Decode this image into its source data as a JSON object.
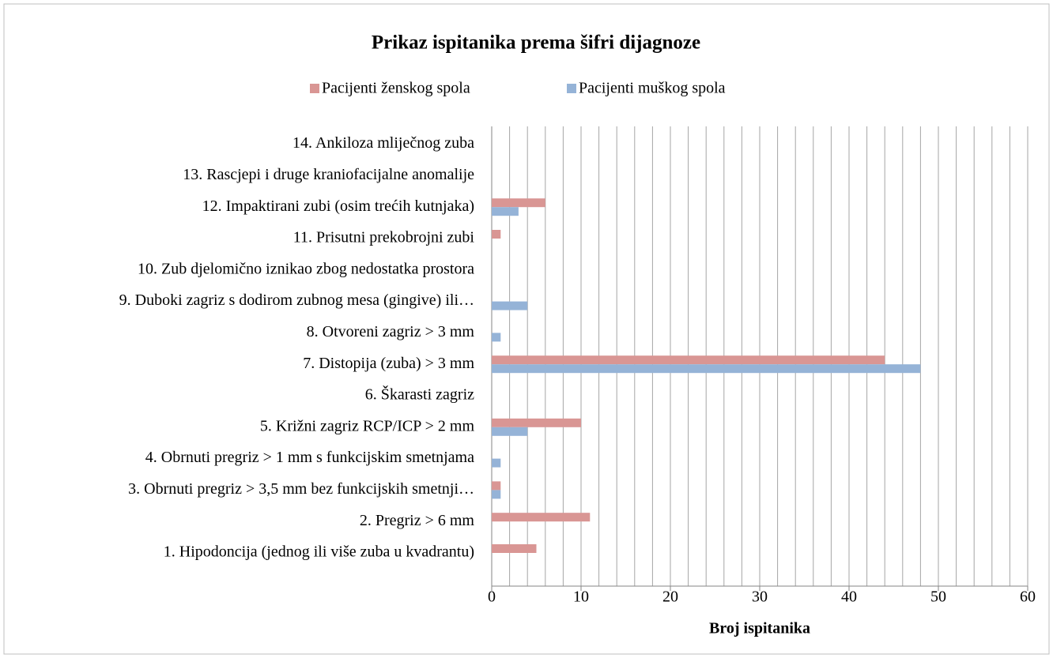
{
  "chart_data": {
    "type": "hbar",
    "title": "Prikaz ispitanika prema šifri dijagnoze",
    "xlabel": "Broj ispitanika",
    "categories": [
      "1. Hipodoncija (jednog ili više zuba u kvadrantu)",
      "2. Pregriz > 6 mm",
      "3. Obrnuti pregriz > 3,5 mm bez funkcijskih smetnji…",
      "4. Obrnuti pregriz > 1 mm s funkcijskim smetnjama",
      "5. Križni zagriz RCP/ICP > 2 mm",
      "6. Škarasti zagriz",
      "7. Distopija (zuba) > 3 mm",
      "8. Otvoreni zagriz > 3 mm",
      "9. Duboki zagriz s dodirom zubnog mesa (gingive) ili…",
      "10. Zub djelomično iznikao zbog nedostatka prostora",
      "11. Prisutni prekobrojni zubi",
      "12. Impaktirani zubi (osim trećih kutnjaka)",
      "13. Rascjepi i druge kraniofacijalne anomalije",
      "14. Ankiloza mliječnog zuba"
    ],
    "series": [
      {
        "name": "Pacijenti ženskog spola",
        "color": "#d99694",
        "values": [
          5,
          11,
          1,
          0,
          10,
          0,
          44,
          0,
          0,
          0,
          1,
          6,
          0,
          0
        ]
      },
      {
        "name": "Pacijenti muškog spola",
        "color": "#95b3d7",
        "values": [
          0,
          0,
          1,
          1,
          4,
          0,
          48,
          1,
          4,
          0,
          0,
          3,
          0,
          0
        ]
      }
    ],
    "xlim": [
      0,
      60
    ],
    "xticks": [
      0,
      10,
      20,
      30,
      40,
      50,
      60
    ],
    "xgrid": [
      0,
      2,
      4,
      6,
      8,
      10,
      12,
      14,
      16,
      18,
      20,
      22,
      24,
      26,
      28,
      30,
      32,
      34,
      36,
      38,
      40,
      42,
      44,
      46,
      48,
      50,
      52,
      54,
      56,
      58,
      60
    ],
    "legend": "top"
  }
}
